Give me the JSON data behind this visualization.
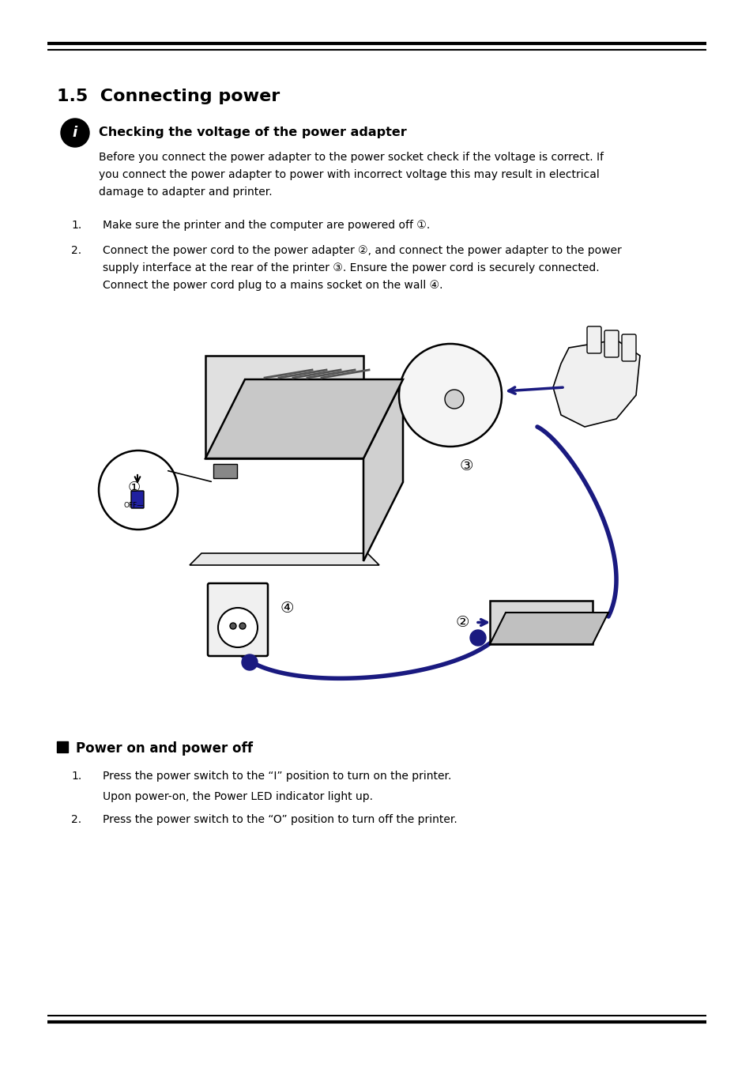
{
  "bg_color": "#ffffff",
  "text_color": "#000000",
  "page_width": 9.54,
  "page_height": 13.5,
  "section_title": "1.5  Connecting power",
  "subsection_title": "Checking the voltage of the power adapter",
  "body_text_lines": [
    "Before you connect the power adapter to the power socket check if the voltage is correct. If",
    "you connect the power adapter to power with incorrect voltage this may result in electrical",
    "damage to adapter and printer."
  ],
  "list_item1_text": "Make sure the printer and the computer are powered off ①.",
  "list_item2_line1": "Connect the power cord to the power adapter ②, and connect the power adapter to the power",
  "list_item2_line2": "supply interface at the rear of the printer ③. Ensure the power cord is securely connected.",
  "list_item2_line3": "Connect the power cord plug to a mains socket on the wall ④.",
  "bullet_section_title": "Power on and power off",
  "power_list_item1_line1": "Press the power switch to the “I” position to turn on the printer.",
  "power_list_item1_line2": "Upon power-on, the Power LED indicator light up.",
  "power_list_item2_text": "Press the power switch to the “O” position to turn off the printer."
}
